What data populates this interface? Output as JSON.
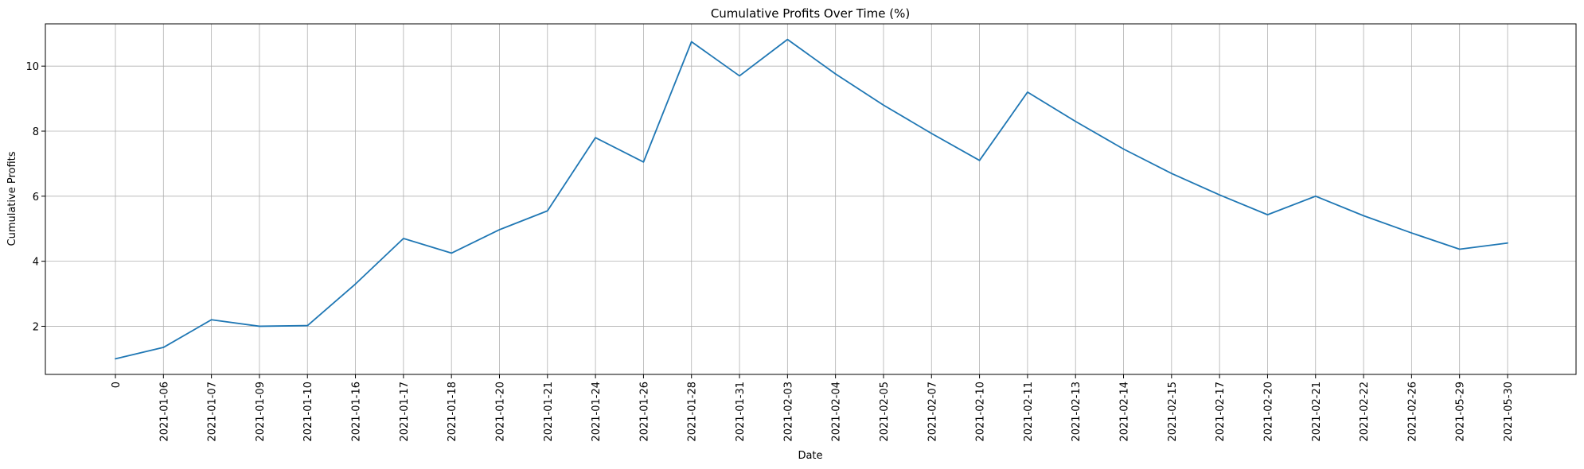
{
  "chart_data": {
    "type": "line",
    "title": "Cumulative Profits Over Time (%)",
    "xlabel": "Date",
    "ylabel": "Cumulative Profits",
    "categories": [
      "0",
      "2021-01-06",
      "2021-01-07",
      "2021-01-09",
      "2021-01-10",
      "2021-01-16",
      "2021-01-17",
      "2021-01-18",
      "2021-01-20",
      "2021-01-21",
      "2021-01-24",
      "2021-01-26",
      "2021-01-28",
      "2021-01-31",
      "2021-02-03",
      "2021-02-04",
      "2021-02-05",
      "2021-02-07",
      "2021-02-10",
      "2021-02-11",
      "2021-02-13",
      "2021-02-14",
      "2021-02-15",
      "2021-02-17",
      "2021-02-20",
      "2021-02-21",
      "2021-02-22",
      "2021-02-26",
      "2021-05-29",
      "2021-05-30"
    ],
    "series": [
      {
        "values": [
          1.0,
          1.35,
          2.2,
          2.0,
          2.02,
          3.3,
          4.7,
          4.25,
          4.97,
          5.55,
          7.8,
          7.05,
          10.75,
          9.7,
          10.82,
          9.76,
          8.8,
          7.93,
          7.1,
          9.2,
          8.3,
          7.45,
          6.7,
          6.04,
          5.43,
          6.0,
          5.4,
          4.87,
          4.37,
          4.56
        ],
        "color": "#1f77b4"
      }
    ],
    "yticks": [
      2,
      4,
      6,
      8,
      10
    ],
    "ylim": [
      0.52,
      11.3
    ],
    "grid": true,
    "legend": "none"
  }
}
